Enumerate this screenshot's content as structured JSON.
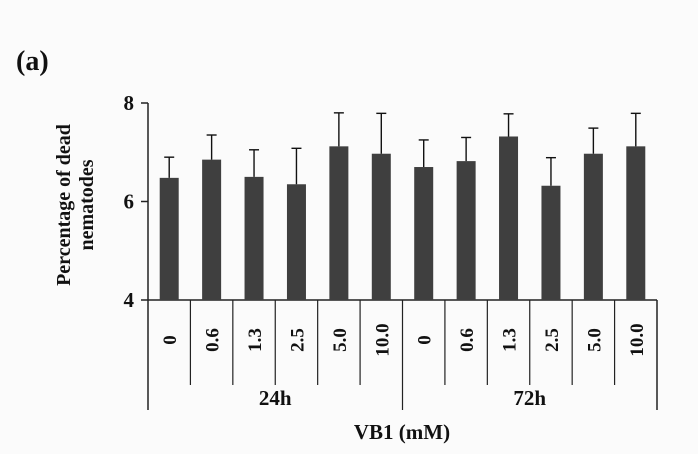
{
  "panel_label": "(a)",
  "chart_data": {
    "type": "bar",
    "title": "",
    "ylabel_lines": [
      "Percentage of dead",
      "nematodes"
    ],
    "xlabel": "VB1 (mM)",
    "ylim": [
      4,
      8
    ],
    "yticks": [
      "4",
      "6",
      "8"
    ],
    "grid": false,
    "legend": "none",
    "bar_color": "#3f3f3f",
    "groups": [
      {
        "name": "24h",
        "categories": [
          "0",
          "0.6",
          "1.3",
          "2.5",
          "5.0",
          "10.0"
        ],
        "values": [
          6.48,
          6.85,
          6.5,
          6.35,
          7.12,
          6.97
        ],
        "errors": [
          0.42,
          0.5,
          0.55,
          0.73,
          0.68,
          0.82
        ]
      },
      {
        "name": "72h",
        "categories": [
          "0",
          "0.6",
          "1.3",
          "2.5",
          "5.0",
          "10.0"
        ],
        "values": [
          6.7,
          6.82,
          7.32,
          6.32,
          6.97,
          7.12
        ],
        "errors": [
          0.55,
          0.48,
          0.46,
          0.57,
          0.52,
          0.67
        ]
      }
    ]
  }
}
